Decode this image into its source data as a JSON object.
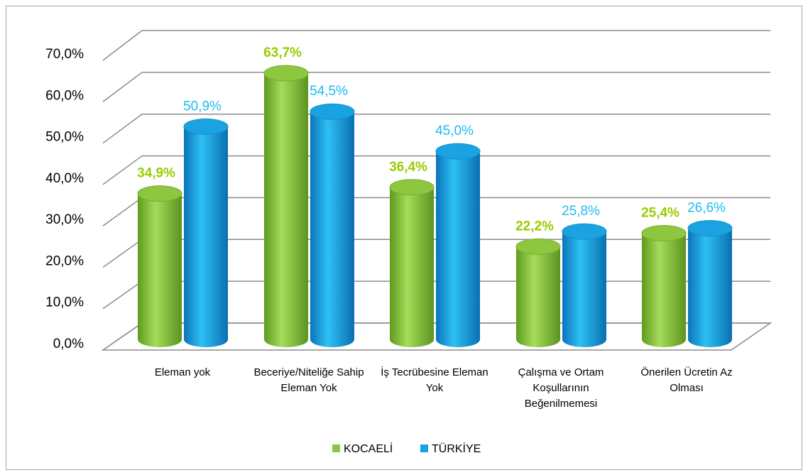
{
  "chart_data": {
    "type": "bar3d",
    "categories": [
      "Eleman yok",
      "Beceriye/Niteliğe Sahip Eleman Yok",
      "İş Tecrübesine Eleman Yok",
      "Çalışma ve Ortam Koşullarının Beğenilmemesi",
      "Önerilen Ücretin Az Olması"
    ],
    "series": [
      {
        "name": "KOCAELİ",
        "color": "#8dc63f",
        "values": [
          34.9,
          63.7,
          36.4,
          22.2,
          25.4
        ],
        "value_labels": [
          "34,9%",
          "63,7%",
          "36,4%",
          "22,2%",
          "25,4%"
        ]
      },
      {
        "name": "TÜRKİYE",
        "color": "#1aa3e0",
        "values": [
          50.9,
          54.5,
          45.0,
          25.8,
          26.6
        ],
        "value_labels": [
          "50,9%",
          "54,5%",
          "45,0%",
          "25,8%",
          "26,6%"
        ]
      }
    ],
    "ylim": [
      0,
      70
    ],
    "yticks": [
      {
        "value": 0,
        "label": "0,0%"
      },
      {
        "value": 10,
        "label": "10,0%"
      },
      {
        "value": 20,
        "label": "20,0%"
      },
      {
        "value": 30,
        "label": "30,0%"
      },
      {
        "value": 40,
        "label": "40,0%"
      },
      {
        "value": 50,
        "label": "50,0%"
      },
      {
        "value": 60,
        "label": "60,0%"
      },
      {
        "value": 70,
        "label": "70,0%"
      }
    ],
    "grid": true,
    "legend": "bottom"
  }
}
